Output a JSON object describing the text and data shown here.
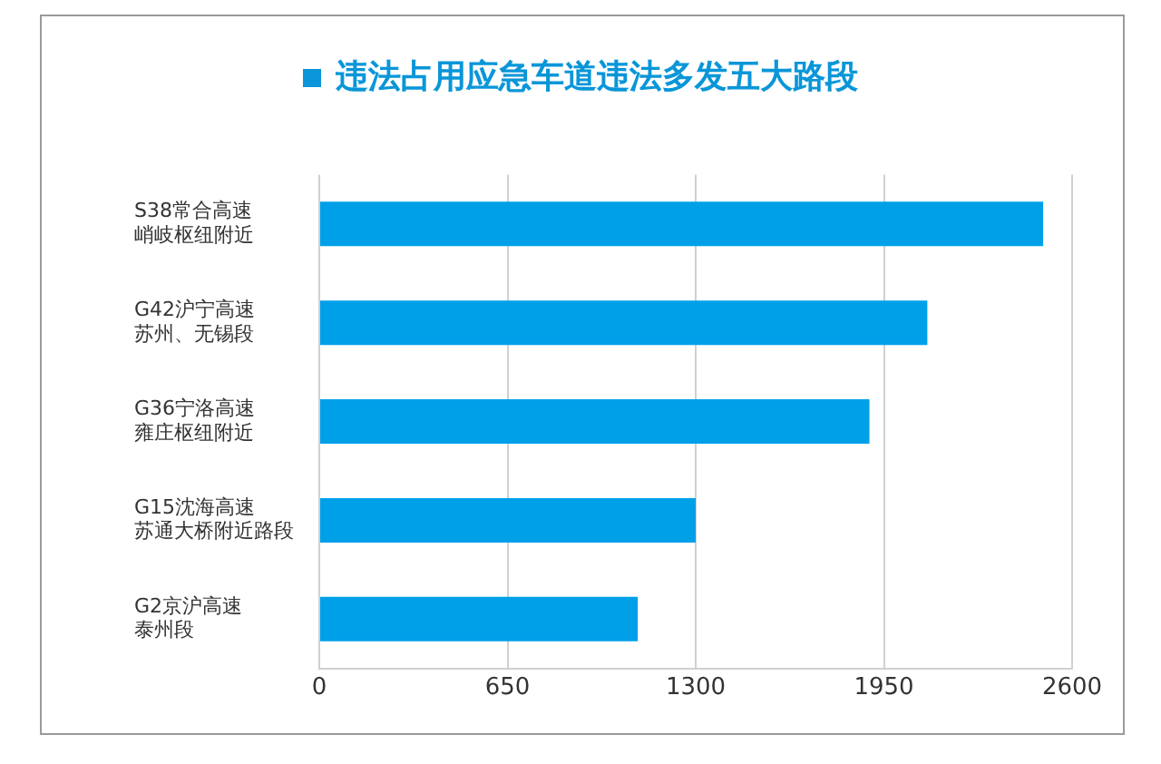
{
  "chart_data": {
    "type": "bar",
    "orientation": "horizontal",
    "title": "违法占用应急车道违法多发五大路段",
    "categories": [
      "S38常合高速峭岐枢纽附近",
      "G42沪宁高速苏州、无锡段",
      "G36宁洛高速雍庄枢纽附近",
      "G15沈海高速苏通大桥附近路段",
      "G2京沪高速泰州段"
    ],
    "values": [
      2500,
      2100,
      1900,
      1300,
      1100
    ],
    "color": "#00a0e9",
    "xlim": [
      0,
      2600
    ],
    "xticks": [
      0,
      650,
      1300,
      1950,
      2600
    ],
    "grid": "x",
    "legend": false
  }
}
